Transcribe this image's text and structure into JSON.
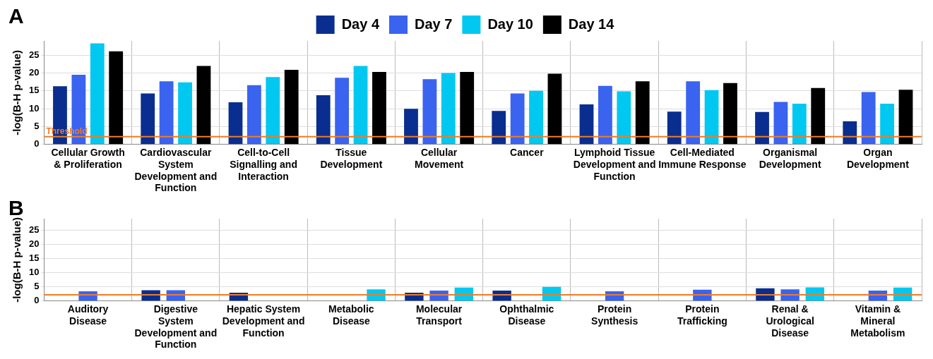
{
  "chart_data": [
    {
      "type": "bar",
      "title": "A",
      "ylabel": "-log(B-H p-value)",
      "categories": [
        "Cellular Growth & Proliferation",
        "Cardiovascular System Development and Function",
        "Cell-to-Cell Signalling and Interaction",
        "Tissue Development",
        "Cellular Movement",
        "Cancer",
        "Lymphoid Tissue Development and Function",
        "Cell-Mediated Immune Response",
        "Organismal Development",
        "Organ Development"
      ],
      "series": [
        {
          "name": "Day 4",
          "color": "#0a2e8f",
          "values": [
            16.3,
            14.3,
            11.8,
            13.8,
            10,
            9.4,
            11.2,
            9.2,
            9.1,
            6.5
          ]
        },
        {
          "name": "Day 7",
          "color": "#3a63f0",
          "values": [
            19.5,
            17.7,
            16.6,
            18.7,
            18.3,
            14.3,
            16.4,
            17.7,
            11.9,
            14.7
          ]
        },
        {
          "name": "Day 10",
          "color": "#00c8f0",
          "values": [
            28.3,
            17.4,
            18.9,
            22,
            20,
            15,
            14.9,
            15.2,
            11.4,
            11.4
          ]
        },
        {
          "name": "Day 14",
          "color": "#000000",
          "values": [
            26.1,
            22,
            20.9,
            20.3,
            20.3,
            19.8,
            17.7,
            17.2,
            15.8,
            15.3
          ]
        }
      ],
      "ylim": [
        0,
        29
      ],
      "yticks": [
        0,
        5,
        10,
        15,
        20,
        25
      ],
      "grid": true,
      "legend": "top",
      "ref_lines": [
        {
          "axis": "y",
          "value": 2.2,
          "label": "Threshold",
          "color": "#f07c24"
        }
      ]
    },
    {
      "type": "bar",
      "title": "B",
      "ylabel": "-log(B-H p-value)",
      "categories": [
        "Auditory Disease",
        "Digestive System Development and Function",
        "Hepatic System Development and Function",
        "Metabolic Disease",
        "Molecular Transport",
        "Ophthalmic Disease",
        "Protein Synthesis",
        "Protein Trafficking",
        "Renal & Urological Disease",
        "Vitamin & Mineral Metabolism"
      ],
      "series": [
        {
          "color": "#0a2e8f",
          "values": [
            null,
            3.8,
            2.9,
            null,
            2.9,
            3.7,
            null,
            null,
            4.5,
            null
          ]
        },
        {
          "color": "#3a63f0",
          "values": [
            3.4,
            3.8,
            null,
            null,
            3.7,
            null,
            3.4,
            4.0,
            4.1,
            3.7
          ]
        },
        {
          "color": "#00c8f0",
          "values": [
            null,
            null,
            null,
            4.1,
            4.7,
            5.0,
            null,
            null,
            4.8,
            4.7
          ]
        }
      ],
      "ylim": [
        0,
        29
      ],
      "yticks": [
        0,
        5,
        10,
        15,
        20,
        25
      ],
      "grid": true,
      "ref_lines": [
        {
          "axis": "y",
          "value": 2.2,
          "color": "#f07c24"
        }
      ]
    }
  ]
}
